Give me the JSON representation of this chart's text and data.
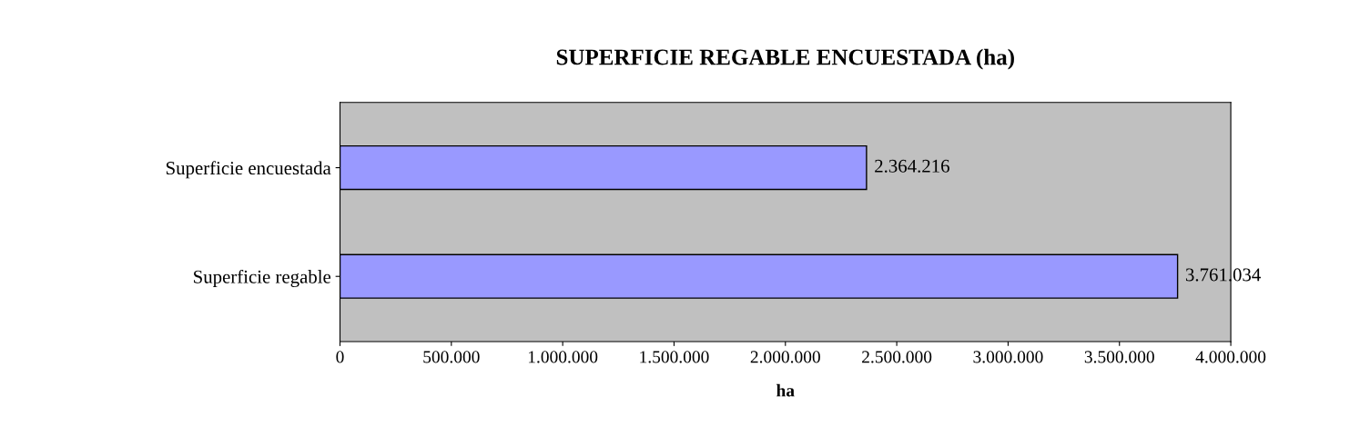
{
  "chart_data": {
    "type": "bar",
    "orientation": "horizontal",
    "title": "SUPERFICIE REGABLE ENCUESTADA (ha)",
    "xlabel": "ha",
    "categories": [
      "Superficie encuestada",
      "Superficie regable"
    ],
    "values": [
      2364216,
      3761034
    ],
    "color": "#9999ff",
    "value_labels": [
      "2.364.216",
      "3.761.034"
    ],
    "xlim": [
      0,
      4000000
    ],
    "xticks": [
      0,
      {
        "value": 500000,
        "label": "500.000"
      },
      {
        "value": 1000000,
        "label": "1.000.000"
      },
      {
        "value": 1500000,
        "label": "1.500.000"
      },
      {
        "value": 2000000,
        "label": "2.000.000"
      },
      {
        "value": 2500000,
        "label": "2.500.000"
      },
      {
        "value": 3000000,
        "label": "3.000.000"
      },
      {
        "value": 3500000,
        "label": "3.500.000"
      },
      {
        "value": 4000000,
        "label": "4.000.000"
      }
    ],
    "grid": false,
    "legend": false
  }
}
